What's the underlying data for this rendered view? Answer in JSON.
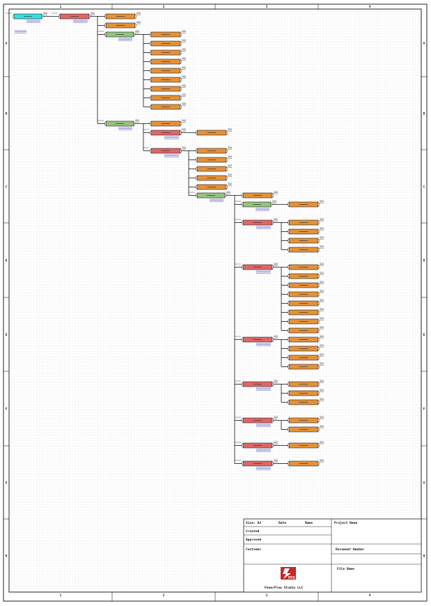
{
  "sheet": {
    "zones_columns": [
      "1",
      "2",
      "3",
      "4"
    ],
    "zones_rows": [
      "A",
      "B",
      "C",
      "D",
      "E",
      "F",
      "G",
      "H"
    ]
  },
  "title_block": {
    "size_label": "Size: A3",
    "date_label": "Date",
    "name_label": "Name",
    "project_label": "Project Name",
    "created_label": "Created",
    "approved_label": "Approved",
    "customer_label": "Customer",
    "document_label": "Document Number",
    "file_label": "File Name",
    "company": "PowerFlow Studio LLC",
    "logo_text": "PFS"
  },
  "colors": {
    "source": "#33e0e6",
    "panel_red": "#e06666",
    "panel_green": "#93c47d",
    "load_orange": "#e69138",
    "grid": "#d8d8d8",
    "wire": "#111111",
    "annotation_blue": "#2b2bb8"
  },
  "diagram": {
    "nodes": [
      {
        "id": "src",
        "kind": "source"
      },
      {
        "id": "p1",
        "kind": "panel_red"
      },
      {
        "id": "l1",
        "kind": "load"
      },
      {
        "id": "l2",
        "kind": "load"
      },
      {
        "id": "g1",
        "kind": "panel_green"
      },
      {
        "id": "g1a",
        "kind": "load"
      },
      {
        "id": "g1b",
        "kind": "load"
      },
      {
        "id": "g1c",
        "kind": "load"
      },
      {
        "id": "g1d",
        "kind": "load"
      },
      {
        "id": "g1e",
        "kind": "load"
      },
      {
        "id": "g1f",
        "kind": "load"
      },
      {
        "id": "g1g",
        "kind": "load"
      },
      {
        "id": "g1h",
        "kind": "load"
      },
      {
        "id": "g1i",
        "kind": "load"
      },
      {
        "id": "g2",
        "kind": "panel_green"
      },
      {
        "id": "g2a",
        "kind": "load"
      },
      {
        "id": "r2",
        "kind": "panel_red"
      },
      {
        "id": "r2a",
        "kind": "load"
      },
      {
        "id": "r3",
        "kind": "panel_red"
      },
      {
        "id": "r3a",
        "kind": "load"
      },
      {
        "id": "r3b",
        "kind": "load"
      },
      {
        "id": "r3c",
        "kind": "load"
      },
      {
        "id": "r3d",
        "kind": "load"
      },
      {
        "id": "r3e",
        "kind": "load"
      },
      {
        "id": "g3",
        "kind": "panel_green"
      },
      {
        "id": "g3a",
        "kind": "load"
      },
      {
        "id": "g4",
        "kind": "panel_green"
      },
      {
        "id": "g4a",
        "kind": "load"
      },
      {
        "id": "r4",
        "kind": "panel_red"
      },
      {
        "id": "r4a",
        "kind": "load"
      },
      {
        "id": "r4b",
        "kind": "load"
      },
      {
        "id": "r4c",
        "kind": "load"
      },
      {
        "id": "r4d",
        "kind": "load"
      },
      {
        "id": "r5",
        "kind": "panel_red"
      },
      {
        "id": "r5a",
        "kind": "load"
      },
      {
        "id": "r5b",
        "kind": "load"
      },
      {
        "id": "r5c",
        "kind": "load"
      },
      {
        "id": "r5d",
        "kind": "load"
      },
      {
        "id": "r5e",
        "kind": "load"
      },
      {
        "id": "r5f",
        "kind": "load"
      },
      {
        "id": "r5g",
        "kind": "load"
      },
      {
        "id": "r5h",
        "kind": "load"
      },
      {
        "id": "r6",
        "kind": "panel_red"
      },
      {
        "id": "r6a",
        "kind": "load"
      },
      {
        "id": "r6b",
        "kind": "load"
      },
      {
        "id": "r6c",
        "kind": "load"
      },
      {
        "id": "r6d",
        "kind": "load"
      },
      {
        "id": "r7",
        "kind": "panel_red"
      },
      {
        "id": "r7a",
        "kind": "load"
      },
      {
        "id": "r7b",
        "kind": "load"
      },
      {
        "id": "r7c",
        "kind": "load"
      },
      {
        "id": "r8",
        "kind": "panel_red"
      },
      {
        "id": "r8a",
        "kind": "load"
      },
      {
        "id": "r8b",
        "kind": "load"
      },
      {
        "id": "r9",
        "kind": "panel_red"
      },
      {
        "id": "r9a",
        "kind": "load"
      },
      {
        "id": "r10",
        "kind": "panel_red"
      },
      {
        "id": "r10a",
        "kind": "load"
      }
    ]
  }
}
